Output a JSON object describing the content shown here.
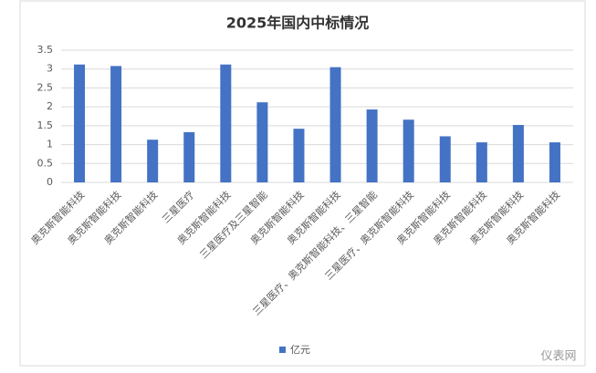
{
  "chart_data": {
    "type": "bar",
    "title": "2025年国内中标情况",
    "categories": [
      "奥克斯智能科技",
      "奥克斯智能科技",
      "奥克斯智能科技",
      "三星医疗",
      "奥克斯智能科技",
      "三星医疗及三星智能",
      "奥克斯智能科技",
      "奥克斯智能科技",
      "三星医疗、奥克斯智能科技、三星智能",
      "三星医疗、奥克斯智能科技",
      "奥克斯智能科技",
      "奥克斯智能科技",
      "奥克斯智能科技",
      "奥克斯智能科技"
    ],
    "series": [
      {
        "name": "亿元",
        "color": "#4472c4",
        "values": [
          3.12,
          3.08,
          1.13,
          1.33,
          3.12,
          2.12,
          1.42,
          3.05,
          1.93,
          1.66,
          1.22,
          1.06,
          1.52,
          1.06
        ]
      }
    ],
    "ylim": [
      0,
      3.5
    ],
    "yticks": [
      0,
      0.5,
      1,
      1.5,
      2,
      2.5,
      3,
      3.5
    ],
    "grid": true,
    "legend": "bottom",
    "watermark": "仪表网"
  }
}
